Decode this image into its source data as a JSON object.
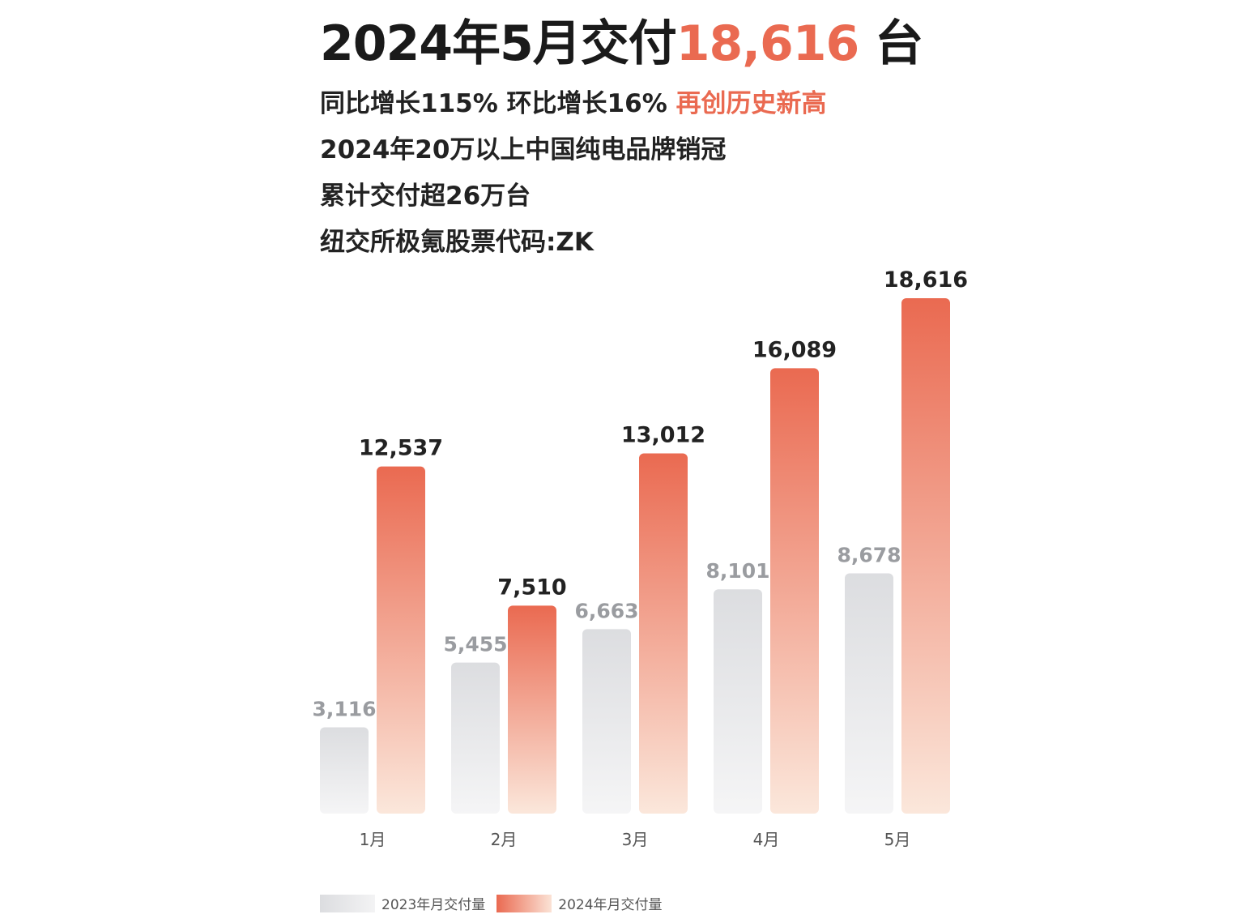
{
  "header": {
    "title_prefix": "2024年5月交付",
    "title_highlight": "18,616",
    "title_suffix": " 台",
    "line1_main": "同比增长115% 环比增长16% ",
    "line1_highlight": "再创历史新高",
    "line2": "2024年20万以上中国纯电品牌销冠",
    "line3": "累计交付超26万台",
    "line4": "纽交所极氪股票代码:ZK"
  },
  "colors": {
    "accent": "#ea6a51",
    "bar_2023_top": "#dcdde0",
    "bar_2023_bottom": "#f5f5f6",
    "bar_2024_top": "#ea6a51",
    "bar_2024_bottom": "#fbe7db",
    "label_2023": "#9a9ca0",
    "label_2024": "#222222"
  },
  "chart_data": {
    "type": "bar",
    "categories": [
      "1月",
      "2月",
      "3月",
      "4月",
      "5月"
    ],
    "series": [
      {
        "name": "2023年月交付量",
        "values": [
          3116,
          5455,
          6663,
          8101,
          8678
        ],
        "labels": [
          "3,116",
          "5,455",
          "6,663",
          "8,101",
          "8,678"
        ]
      },
      {
        "name": "2024年月交付量",
        "values": [
          12537,
          7510,
          13012,
          16089,
          18616
        ],
        "labels": [
          "12,537",
          "7,510",
          "13,012",
          "16,089",
          "18,616"
        ]
      }
    ],
    "title": "",
    "xlabel": "",
    "ylabel": "",
    "legend_position": "bottom-left",
    "grid": false
  }
}
